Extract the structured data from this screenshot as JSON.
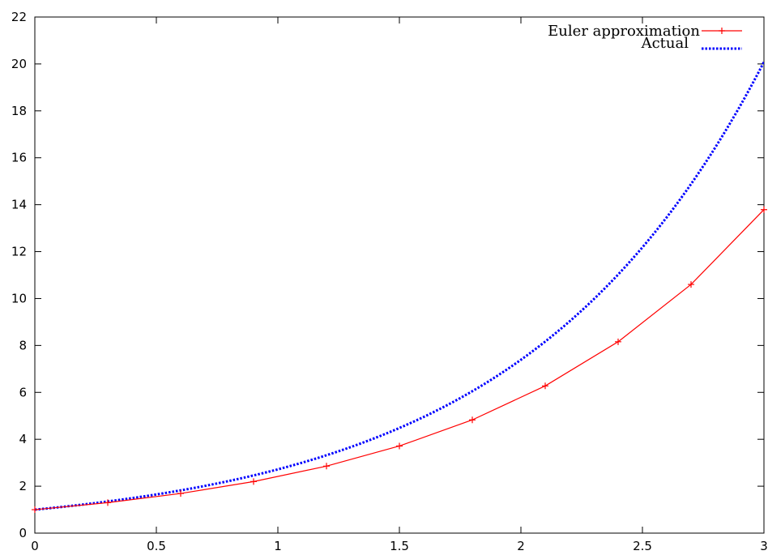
{
  "chart_data": {
    "type": "line",
    "title": "",
    "xlabel": "",
    "ylabel": "",
    "xlim": [
      0,
      3
    ],
    "ylim": [
      0,
      22
    ],
    "x_ticks": [
      0,
      0.5,
      1,
      1.5,
      2,
      2.5,
      3
    ],
    "x_tick_labels": [
      "0",
      "0.5",
      "1",
      "1.5",
      "2",
      "2.5",
      "3"
    ],
    "y_ticks": [
      0,
      2,
      4,
      6,
      8,
      10,
      12,
      14,
      16,
      18,
      20,
      22
    ],
    "y_tick_labels": [
      "0",
      "2",
      "4",
      "6",
      "8",
      "10",
      "12",
      "14",
      "16",
      "18",
      "20",
      "22"
    ],
    "grid": false,
    "legend_position": "top-right",
    "series": [
      {
        "name": "Euler approximation",
        "style": "solid-with-plus-markers",
        "color": "#ff0000",
        "x": [
          0,
          0.3,
          0.6,
          0.9,
          1.2,
          1.5,
          1.8,
          2.1,
          2.4,
          2.7,
          3.0
        ],
        "y": [
          1.0,
          1.3,
          1.69,
          2.197,
          2.856,
          3.713,
          4.827,
          6.275,
          8.157,
          10.6,
          13.79
        ]
      },
      {
        "name": "Actual",
        "style": "dotted",
        "color": "#0000ff",
        "function": "exp(x)",
        "x": [
          0,
          0.25,
          0.5,
          0.75,
          1.0,
          1.25,
          1.5,
          1.75,
          2.0,
          2.25,
          2.5,
          2.75,
          3.0
        ],
        "y": [
          1.0,
          1.284,
          1.649,
          2.117,
          2.718,
          3.49,
          4.482,
          5.755,
          7.389,
          9.488,
          12.18,
          15.64,
          20.09
        ]
      }
    ]
  }
}
